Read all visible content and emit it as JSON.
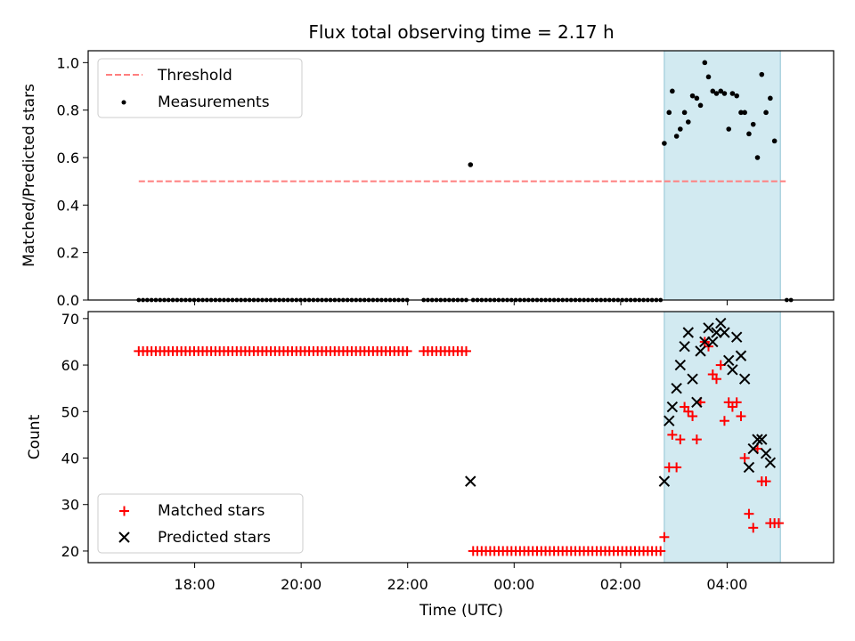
{
  "chart_data": {
    "title": "Flux total observing time = 2.17 h",
    "colors": {
      "threshold": "#ff7f7f",
      "measurement": "#000000",
      "matched": "#ff0000",
      "predicted": "#000000",
      "span_fill": "#add8e6"
    },
    "x_axis": {
      "label": "Time (UTC)",
      "unit": "hours since 00:00",
      "range": [
        -8.0,
        6.0
      ],
      "ticks": [
        -6,
        -4,
        -2,
        0,
        2,
        4
      ],
      "tick_labels": [
        "18:00",
        "20:00",
        "22:00",
        "00:00",
        "02:00",
        "04:00"
      ]
    },
    "shaded_interval": [
      2.82,
      5.0
    ],
    "panels": [
      {
        "type": "scatter",
        "ylabel": "Matched/Predicted stars",
        "ylim": [
          0.0,
          1.05
        ],
        "yticks": [
          0.0,
          0.2,
          0.4,
          0.6,
          0.8,
          1.0
        ],
        "ytick_labels": [
          "0.0",
          "0.2",
          "0.4",
          "0.6",
          "0.8",
          "1.0"
        ],
        "legend": {
          "position": "upper-left",
          "entries": [
            "Threshold",
            "Measurements"
          ]
        },
        "threshold": {
          "name": "Threshold",
          "value": 0.5,
          "x_range": [
            -7.05,
            5.1
          ]
        },
        "measurements": {
          "name": "Measurements",
          "zero_segments": [
            {
              "from": -7.05,
              "to": -2.0,
              "step": 0.08
            },
            {
              "from": -1.7,
              "to": -0.9,
              "step": 0.08
            },
            {
              "from": -0.77,
              "to": 2.77,
              "step": 0.08
            },
            {
              "from": 5.12,
              "to": 5.2,
              "step": 0.08
            }
          ],
          "points": [
            [
              -0.82,
              0.57
            ],
            [
              2.82,
              0.66
            ],
            [
              2.91,
              0.79
            ],
            [
              2.97,
              0.88
            ],
            [
              3.05,
              0.69
            ],
            [
              3.12,
              0.72
            ],
            [
              3.2,
              0.79
            ],
            [
              3.27,
              0.75
            ],
            [
              3.35,
              0.86
            ],
            [
              3.43,
              0.85
            ],
            [
              3.5,
              0.82
            ],
            [
              3.58,
              1.0
            ],
            [
              3.65,
              0.94
            ],
            [
              3.73,
              0.88
            ],
            [
              3.8,
              0.87
            ],
            [
              3.88,
              0.88
            ],
            [
              3.95,
              0.87
            ],
            [
              4.03,
              0.72
            ],
            [
              4.1,
              0.87
            ],
            [
              4.18,
              0.86
            ],
            [
              4.26,
              0.79
            ],
            [
              4.33,
              0.79
            ],
            [
              4.41,
              0.7
            ],
            [
              4.49,
              0.74
            ],
            [
              4.57,
              0.6
            ],
            [
              4.65,
              0.95
            ],
            [
              4.73,
              0.79
            ],
            [
              4.81,
              0.85
            ],
            [
              4.89,
              0.67
            ]
          ]
        }
      },
      {
        "type": "scatter",
        "ylabel": "Count",
        "ylim": [
          17.5,
          71.5
        ],
        "yticks": [
          20,
          30,
          40,
          50,
          60,
          70
        ],
        "ytick_labels": [
          "20",
          "30",
          "40",
          "50",
          "60",
          "70"
        ],
        "legend": {
          "position": "lower-left",
          "entries": [
            "Matched stars",
            "Predicted stars"
          ]
        },
        "matched_stars": {
          "name": "Matched stars",
          "constant_segments": [
            {
              "from": -7.05,
              "to": -2.0,
              "step": 0.08,
              "value": 63
            },
            {
              "from": -1.7,
              "to": -0.9,
              "step": 0.08,
              "value": 63
            },
            {
              "from": -0.77,
              "to": 2.77,
              "step": 0.08,
              "value": 20
            }
          ],
          "points": [
            [
              2.82,
              23
            ],
            [
              2.91,
              38
            ],
            [
              2.97,
              45
            ],
            [
              3.05,
              38
            ],
            [
              3.12,
              44
            ],
            [
              3.2,
              51
            ],
            [
              3.27,
              50
            ],
            [
              3.35,
              49
            ],
            [
              3.43,
              44
            ],
            [
              3.5,
              52
            ],
            [
              3.58,
              65
            ],
            [
              3.65,
              64
            ],
            [
              3.73,
              58
            ],
            [
              3.8,
              57
            ],
            [
              3.88,
              60
            ],
            [
              3.95,
              48
            ],
            [
              4.03,
              52
            ],
            [
              4.1,
              51
            ],
            [
              4.18,
              52
            ],
            [
              4.26,
              49
            ],
            [
              4.33,
              40
            ],
            [
              4.41,
              28
            ],
            [
              4.49,
              25
            ],
            [
              4.57,
              42
            ],
            [
              4.65,
              35
            ],
            [
              4.73,
              35
            ],
            [
              4.81,
              26
            ],
            [
              4.89,
              26
            ],
            [
              4.97,
              26
            ]
          ]
        },
        "predicted_stars": {
          "name": "Predicted stars",
          "points": [
            [
              -0.82,
              35
            ],
            [
              2.82,
              35
            ],
            [
              2.91,
              48
            ],
            [
              2.97,
              51
            ],
            [
              3.05,
              55
            ],
            [
              3.12,
              60
            ],
            [
              3.2,
              64
            ],
            [
              3.27,
              67
            ],
            [
              3.35,
              57
            ],
            [
              3.43,
              52
            ],
            [
              3.5,
              63
            ],
            [
              3.58,
              65
            ],
            [
              3.65,
              68
            ],
            [
              3.73,
              65
            ],
            [
              3.8,
              67
            ],
            [
              3.88,
              69
            ],
            [
              3.95,
              67
            ],
            [
              4.03,
              61
            ],
            [
              4.1,
              59
            ],
            [
              4.18,
              66
            ],
            [
              4.26,
              62
            ],
            [
              4.33,
              57
            ],
            [
              4.41,
              38
            ],
            [
              4.49,
              42
            ],
            [
              4.57,
              44
            ],
            [
              4.65,
              44
            ],
            [
              4.73,
              41
            ],
            [
              4.81,
              39
            ]
          ]
        }
      }
    ]
  }
}
